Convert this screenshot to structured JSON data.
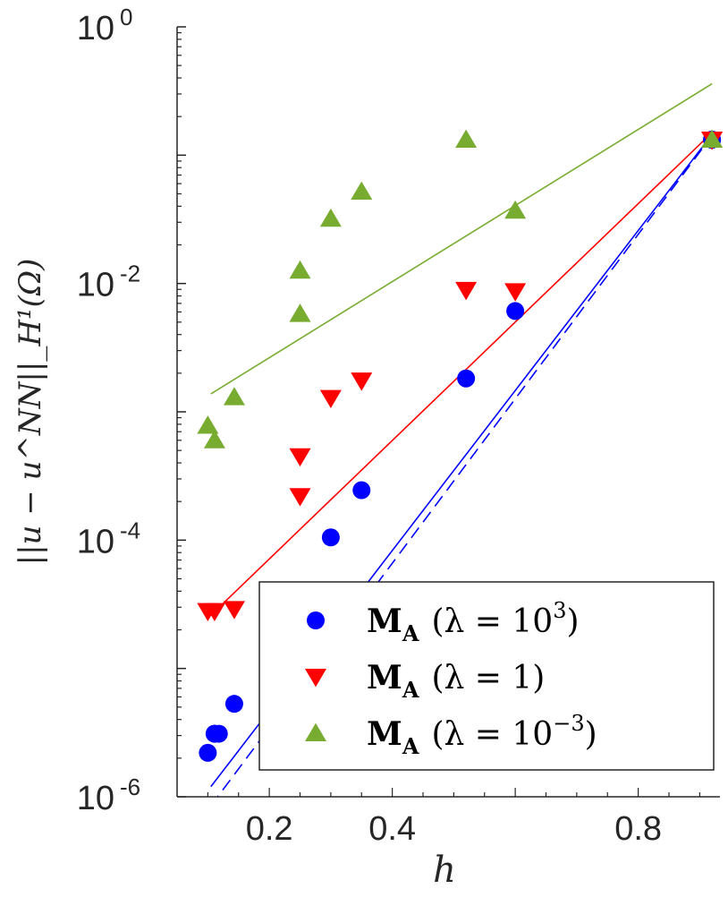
{
  "chart_data": {
    "type": "scatter",
    "xscale": "linear",
    "yscale": "log",
    "xlabel": "h",
    "ylabel": "||u − u^NN||_H¹(Ω)",
    "xlim": [
      0.05,
      0.93
    ],
    "ylim": [
      1e-06,
      1
    ],
    "x_ticks": [
      {
        "value": 0.2,
        "label": "0.2"
      },
      {
        "value": 0.4,
        "label": "0.4"
      },
      {
        "value": 0.8,
        "label": "0.8"
      }
    ],
    "y_ticks": [
      {
        "value": 1,
        "base": "10",
        "exp": "0"
      },
      {
        "value": 0.01,
        "base": "10",
        "exp": "-2"
      },
      {
        "value": 0.0001,
        "base": "10",
        "exp": "-4"
      },
      {
        "value": 1e-06,
        "base": "10",
        "exp": "-6"
      }
    ],
    "series": [
      {
        "name": "M_A (λ = 10³)",
        "legend_main": "M",
        "legend_sub": "A",
        "legend_rest": "(λ = 10",
        "legend_sup": "3",
        "legend_close": ")",
        "color": "#0000ff",
        "marker": "circle",
        "x": [
          0.1,
          0.111,
          0.111,
          0.118,
          0.143,
          0.3,
          0.35,
          0.52,
          0.6,
          0.92
        ],
        "y": [
          2.2e-06,
          3.1e-06,
          3.1e-06,
          3.1e-06,
          5.3e-06,
          0.000105,
          0.000245,
          0.00182,
          0.0061,
          0.132
        ],
        "fit": {
          "x1": 0.105,
          "y1": 1.2e-06,
          "x2": 0.92,
          "y2": 0.145
        },
        "fit_dashed": {
          "x1": 0.105,
          "y1": 8.5e-07,
          "x2": 0.92,
          "y2": 0.142
        }
      },
      {
        "name": "M_A (λ = 1)",
        "legend_main": "M",
        "legend_sub": "A",
        "legend_rest": "(λ = 1)",
        "legend_sup": "",
        "legend_close": "",
        "color": "#ff0000",
        "marker": "triangle-down",
        "x": [
          0.1,
          0.111,
          0.143,
          0.25,
          0.25,
          0.3,
          0.35,
          0.52,
          0.6,
          0.92
        ],
        "y": [
          2.8e-05,
          2.8e-05,
          2.9e-05,
          0.00022,
          0.00045,
          0.00128,
          0.00175,
          0.0089,
          0.0087,
          0.132
        ],
        "fit": {
          "x1": 0.105,
          "y1": 2.6e-05,
          "x2": 0.92,
          "y2": 0.15
        }
      },
      {
        "name": "M_A (λ = 10⁻³)",
        "legend_main": "M",
        "legend_sub": "A",
        "legend_rest": "(λ = 10",
        "legend_sup": "−3",
        "legend_close": ")",
        "color": "#77ac30",
        "marker": "triangle-up",
        "x": [
          0.1,
          0.111,
          0.143,
          0.25,
          0.25,
          0.3,
          0.35,
          0.52,
          0.6,
          0.92
        ],
        "y": [
          0.00078,
          0.0006,
          0.0013,
          0.0058,
          0.0126,
          0.032,
          0.052,
          0.132,
          0.037,
          0.132
        ],
        "fit": {
          "x1": 0.105,
          "y1": 0.00138,
          "x2": 0.92,
          "y2": 0.36
        }
      }
    ],
    "legend_position": "bottom-right"
  }
}
